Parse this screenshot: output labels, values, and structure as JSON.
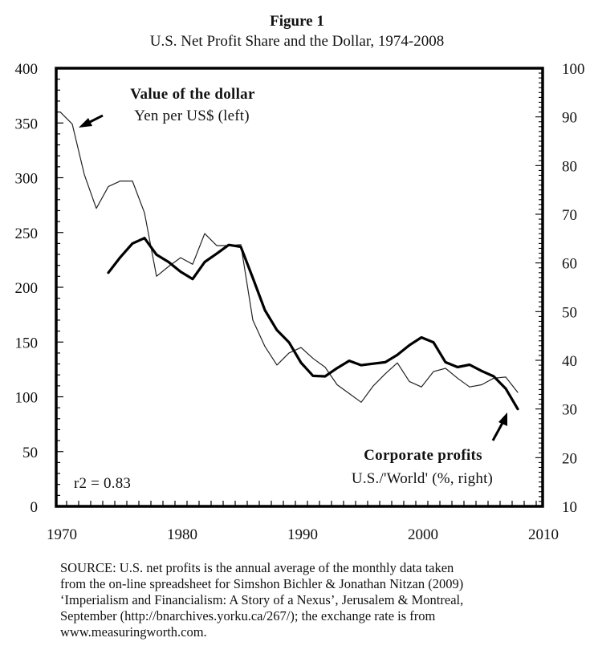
{
  "figure": {
    "label": "Figure 1",
    "title": "U.S. Net Profit Share and the Dollar, 1974-2008"
  },
  "chart_data": {
    "type": "line",
    "title": "U.S. Net Profit Share and the Dollar, 1974-2008",
    "xlabel": "",
    "ylabel_left": "Yen per US$",
    "ylabel_right": "U.S./'World' corporate profits (%)",
    "xlim": [
      1970,
      2010
    ],
    "ylim_left": [
      0,
      400
    ],
    "ylim_right": [
      10,
      100
    ],
    "grid": false,
    "x_ticks": [
      "1970",
      "1980",
      "1990",
      "2000",
      "2010"
    ],
    "x_tick_values": [
      1970,
      1980,
      1990,
      2000,
      2010
    ],
    "y_left_ticks": [
      "0",
      "50",
      "100",
      "150",
      "200",
      "250",
      "300",
      "350",
      "400"
    ],
    "y_left_tick_values": [
      0,
      50,
      100,
      150,
      200,
      250,
      300,
      350,
      400
    ],
    "y_right_ticks": [
      "10",
      "20",
      "30",
      "40",
      "50",
      "60",
      "70",
      "80",
      "90",
      "100"
    ],
    "y_right_tick_values": [
      10,
      20,
      30,
      40,
      50,
      60,
      70,
      80,
      90,
      100
    ],
    "series": [
      {
        "name": "Value of the dollar: Yen per US$ (left)",
        "axis": "left",
        "style": "thin",
        "x": [
          1970,
          1971,
          1972,
          1973,
          1974,
          1975,
          1976,
          1977,
          1978,
          1979,
          1980,
          1981,
          1982,
          1983,
          1984,
          1985,
          1986,
          1987,
          1988,
          1989,
          1990,
          1991,
          1992,
          1993,
          1994,
          1995,
          1996,
          1997,
          1998,
          1999,
          2000,
          2001,
          2002,
          2003,
          2004,
          2005,
          2006,
          2007,
          2008
        ],
        "values": [
          360,
          349,
          303,
          272,
          292,
          297,
          297,
          268,
          210,
          219,
          227,
          221,
          249,
          238,
          238,
          239,
          170,
          146,
          129,
          140,
          145,
          135,
          127,
          111,
          103,
          95,
          110,
          121,
          131,
          114,
          109,
          123,
          126,
          117,
          109,
          111,
          117,
          118,
          104
        ]
      },
      {
        "name": "Corporate profits: U.S./'World' (%, right)",
        "axis": "right",
        "style": "thick",
        "x": [
          1974,
          1975,
          1976,
          1977,
          1978,
          1979,
          1980,
          1981,
          1982,
          1983,
          1984,
          1985,
          1986,
          1987,
          1988,
          1989,
          1990,
          1991,
          1992,
          1993,
          1994,
          1995,
          1996,
          1997,
          1998,
          1999,
          2000,
          2001,
          2002,
          2003,
          2004,
          2005,
          2006,
          2007,
          2008
        ],
        "values": [
          58.0,
          61.2,
          64.0,
          65.1,
          61.7,
          60.2,
          58.2,
          56.7,
          60.2,
          61.9,
          63.7,
          63.3,
          56.9,
          50.3,
          46.2,
          43.7,
          39.5,
          36.8,
          36.7,
          38.4,
          39.9,
          39.0,
          39.3,
          39.6,
          41.1,
          43.1,
          44.7,
          43.7,
          39.6,
          38.6,
          39.1,
          37.8,
          36.7,
          34.2,
          30.0
        ]
      }
    ],
    "annotations": {
      "dollar_title": "Value of the dollar",
      "dollar_subtitle": "Yen per US$ (left)",
      "profits_title": "Corporate profits",
      "profits_subtitle": "U.S./'World' (%, right)",
      "r2": "r2 = 0.83"
    }
  },
  "source": {
    "lines": [
      "SOURCE: U.S. net profits is the annual average of the monthly data taken",
      "from the on-line spreadsheet for Simshon Bichler & Jonathan Nitzan (2009)",
      "‘Imperialism and Financialism: A Story of a Nexus’, Jerusalem & Montreal,",
      "September (http://bnarchives.yorku.ca/267/); the exchange rate is from",
      "www.measuringworth.com."
    ]
  }
}
